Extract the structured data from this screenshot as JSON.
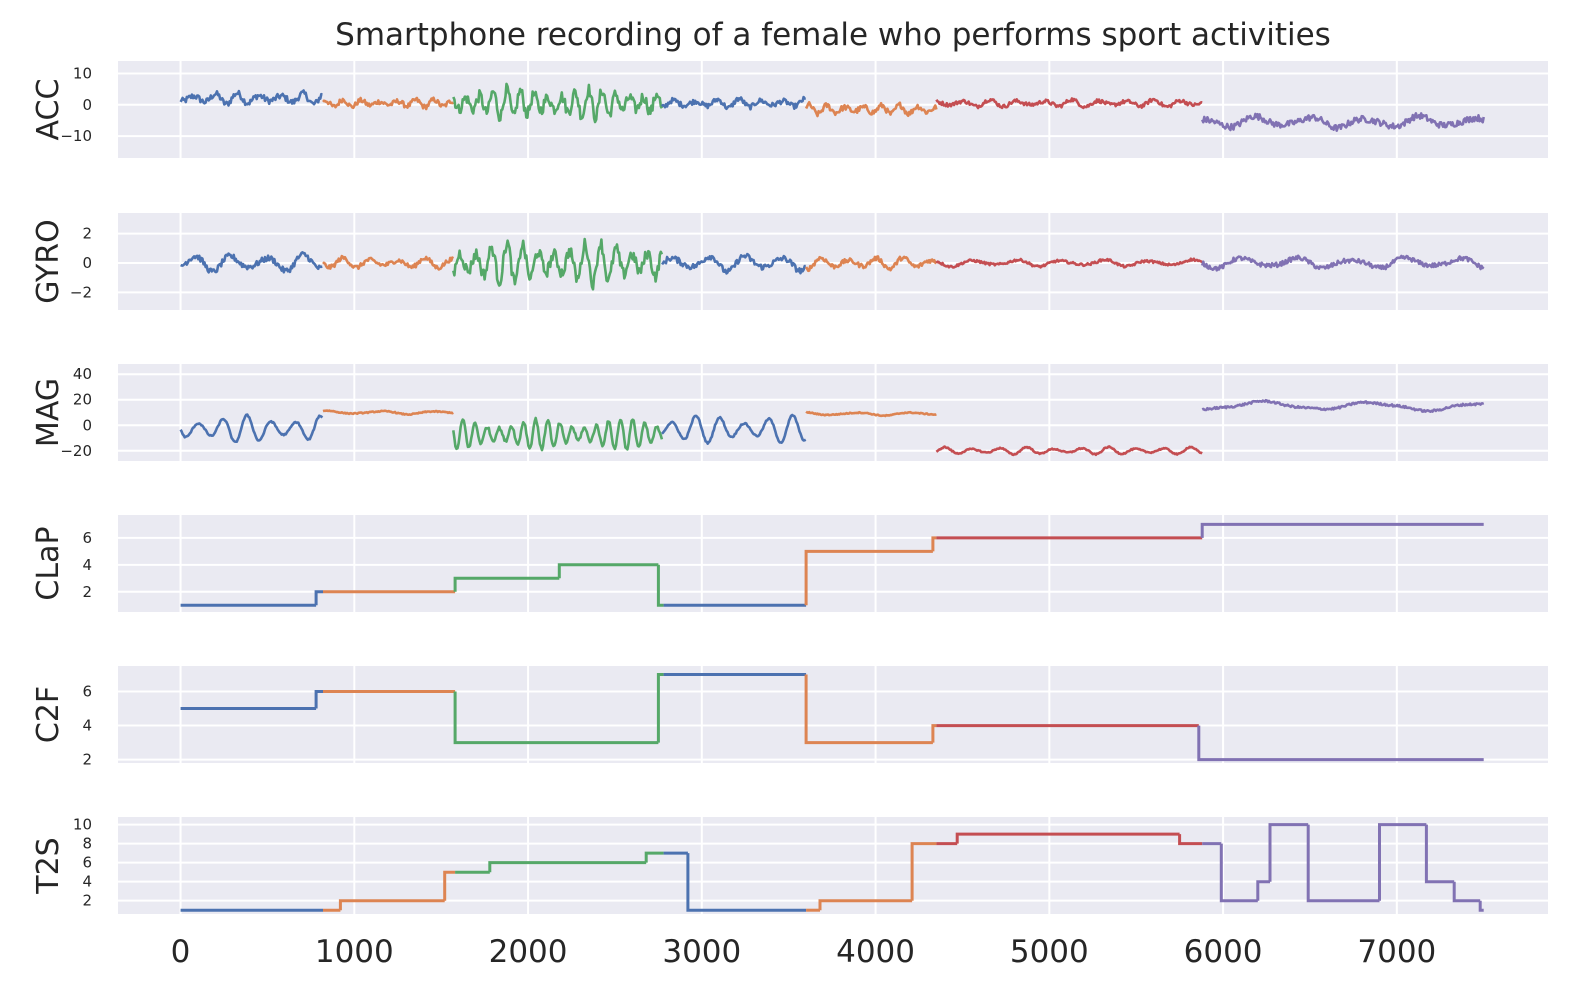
{
  "chart_data": {
    "type": "line",
    "title": "Smartphone recording of a female who performs sport activities",
    "x_ticks": [
      0,
      1000,
      2000,
      3000,
      4000,
      5000,
      6000,
      7000
    ],
    "xlim": [
      -360,
      7870
    ],
    "segment_colors": [
      "#4C72B0",
      "#DD8452",
      "#55A868",
      "#4C72B0",
      "#DD8452",
      "#C44E52",
      "#8172B3"
    ],
    "panels": [
      {
        "name": "acc",
        "ylabel": "ACC",
        "ylim": [
          -17,
          14
        ],
        "yticks": [
          10,
          0,
          -10
        ],
        "ytick_labels": [
          "10",
          "0",
          "−10"
        ],
        "kind": "signal",
        "segments": [
          {
            "start": 0,
            "end": 820,
            "base": 2,
            "amp": 1.8,
            "freq": 0.05,
            "noise": 1.0
          },
          {
            "start": 820,
            "end": 1570,
            "base": 0.5,
            "amp": 1.2,
            "freq": 0.06,
            "noise": 0.8
          },
          {
            "start": 1570,
            "end": 2770,
            "base": 0.5,
            "amp": 4.5,
            "freq": 0.08,
            "noise": 1.8
          },
          {
            "start": 2770,
            "end": 3600,
            "base": 0.5,
            "amp": 1.5,
            "freq": 0.05,
            "noise": 0.8
          },
          {
            "start": 3600,
            "end": 4350,
            "base": -1.5,
            "amp": 1.5,
            "freq": 0.06,
            "noise": 0.9
          },
          {
            "start": 4350,
            "end": 5880,
            "base": 0.5,
            "amp": 1.2,
            "freq": 0.04,
            "noise": 0.6
          },
          {
            "start": 5880,
            "end": 7500,
            "base": -5.5,
            "amp": 2.0,
            "freq": 0.02,
            "noise": 1.0
          }
        ]
      },
      {
        "name": "gyro",
        "ylabel": "GYRO",
        "ylim": [
          -3.2,
          3.4
        ],
        "yticks": [
          2,
          0,
          -2
        ],
        "ytick_labels": [
          "2",
          "0",
          "−2"
        ],
        "kind": "signal",
        "segments": [
          {
            "start": 0,
            "end": 820,
            "base": 0,
            "amp": 0.6,
            "freq": 0.03,
            "noise": 0.2
          },
          {
            "start": 820,
            "end": 1570,
            "base": 0,
            "amp": 0.35,
            "freq": 0.04,
            "noise": 0.15
          },
          {
            "start": 1570,
            "end": 2770,
            "base": 0,
            "amp": 1.4,
            "freq": 0.07,
            "noise": 0.4
          },
          {
            "start": 2770,
            "end": 3600,
            "base": 0,
            "amp": 0.6,
            "freq": 0.03,
            "noise": 0.2
          },
          {
            "start": 3600,
            "end": 4350,
            "base": 0,
            "amp": 0.4,
            "freq": 0.04,
            "noise": 0.15
          },
          {
            "start": 4350,
            "end": 5880,
            "base": 0,
            "amp": 0.25,
            "freq": 0.025,
            "noise": 0.08
          },
          {
            "start": 5880,
            "end": 7500,
            "base": 0,
            "amp": 0.4,
            "freq": 0.02,
            "noise": 0.15
          }
        ]
      },
      {
        "name": "mag",
        "ylabel": "MAG",
        "ylim": [
          -28,
          48
        ],
        "yticks": [
          40,
          20,
          0,
          -20
        ],
        "ytick_labels": [
          "40",
          "20",
          "0",
          "−20"
        ],
        "kind": "signal",
        "segments": [
          {
            "start": 0,
            "end": 820,
            "base": -3,
            "amp": 11,
            "freq": 0.045,
            "noise": 0.6
          },
          {
            "start": 820,
            "end": 1570,
            "base": 10,
            "amp": 1.5,
            "freq": 0.02,
            "noise": 0.4
          },
          {
            "start": 1570,
            "end": 2770,
            "base": -7,
            "amp": 12,
            "freq": 0.09,
            "noise": 1.2
          },
          {
            "start": 2770,
            "end": 3600,
            "base": -3,
            "amp": 11,
            "freq": 0.045,
            "noise": 0.6
          },
          {
            "start": 3600,
            "end": 4350,
            "base": 9,
            "amp": 1.5,
            "freq": 0.02,
            "noise": 0.4
          },
          {
            "start": 4350,
            "end": 5880,
            "base": -20,
            "amp": 3,
            "freq": 0.04,
            "noise": 0.5
          },
          {
            "start": 5880,
            "end": 7500,
            "base": 15,
            "amp": 4,
            "freq": 0.01,
            "noise": 0.8
          }
        ]
      },
      {
        "name": "clap",
        "ylabel": "CLaP",
        "ylim": [
          0.5,
          7.7
        ],
        "yticks": [
          6,
          4,
          2
        ],
        "ytick_labels": [
          "6",
          "4",
          "2"
        ],
        "kind": "step",
        "steps": [
          {
            "start": 0,
            "end": 780,
            "value": 1,
            "color": 0
          },
          {
            "start": 780,
            "end": 820,
            "value": 2,
            "color": 0
          },
          {
            "start": 820,
            "end": 1580,
            "value": 2,
            "color": 1
          },
          {
            "start": 1580,
            "end": 2180,
            "value": 3,
            "color": 2
          },
          {
            "start": 2180,
            "end": 2750,
            "value": 4,
            "color": 2
          },
          {
            "start": 2750,
            "end": 2780,
            "value": 1,
            "color": 2
          },
          {
            "start": 2780,
            "end": 3600,
            "value": 1,
            "color": 3
          },
          {
            "start": 3600,
            "end": 4330,
            "value": 5,
            "color": 4
          },
          {
            "start": 4330,
            "end": 4350,
            "value": 6,
            "color": 4
          },
          {
            "start": 4350,
            "end": 5880,
            "value": 6,
            "color": 5
          },
          {
            "start": 5880,
            "end": 7500,
            "value": 7,
            "color": 6
          }
        ]
      },
      {
        "name": "c2f",
        "ylabel": "C2F",
        "ylim": [
          1.8,
          7.5
        ],
        "yticks": [
          6,
          4,
          2
        ],
        "ytick_labels": [
          "6",
          "4",
          "2"
        ],
        "kind": "step",
        "steps": [
          {
            "start": 0,
            "end": 780,
            "value": 5,
            "color": 0
          },
          {
            "start": 780,
            "end": 820,
            "value": 6,
            "color": 0
          },
          {
            "start": 820,
            "end": 1580,
            "value": 6,
            "color": 1
          },
          {
            "start": 1580,
            "end": 2750,
            "value": 3,
            "color": 2
          },
          {
            "start": 2750,
            "end": 2780,
            "value": 7,
            "color": 2
          },
          {
            "start": 2780,
            "end": 3600,
            "value": 7,
            "color": 3
          },
          {
            "start": 3600,
            "end": 4330,
            "value": 3,
            "color": 4
          },
          {
            "start": 4330,
            "end": 4350,
            "value": 4,
            "color": 4
          },
          {
            "start": 4350,
            "end": 5860,
            "value": 4,
            "color": 5
          },
          {
            "start": 5860,
            "end": 7500,
            "value": 2,
            "color": 6
          }
        ]
      },
      {
        "name": "t2s",
        "ylabel": "T2S",
        "ylim": [
          0.6,
          10.8
        ],
        "yticks": [
          10,
          8,
          6,
          4,
          2
        ],
        "ytick_labels": [
          "10",
          "8",
          "6",
          "4",
          "2"
        ],
        "kind": "step",
        "steps": [
          {
            "start": 0,
            "end": 820,
            "value": 1,
            "color": 0
          },
          {
            "start": 820,
            "end": 920,
            "value": 1,
            "color": 1
          },
          {
            "start": 920,
            "end": 1520,
            "value": 2,
            "color": 1
          },
          {
            "start": 1520,
            "end": 1580,
            "value": 5,
            "color": 1
          },
          {
            "start": 1580,
            "end": 1780,
            "value": 5,
            "color": 2
          },
          {
            "start": 1780,
            "end": 2680,
            "value": 6,
            "color": 2
          },
          {
            "start": 2680,
            "end": 2780,
            "value": 7,
            "color": 2
          },
          {
            "start": 2780,
            "end": 2920,
            "value": 7,
            "color": 3
          },
          {
            "start": 2920,
            "end": 3600,
            "value": 1,
            "color": 3
          },
          {
            "start": 3600,
            "end": 3680,
            "value": 1,
            "color": 4
          },
          {
            "start": 3680,
            "end": 4210,
            "value": 2,
            "color": 4
          },
          {
            "start": 4210,
            "end": 4350,
            "value": 8,
            "color": 4
          },
          {
            "start": 4350,
            "end": 4470,
            "value": 8,
            "color": 5
          },
          {
            "start": 4470,
            "end": 5750,
            "value": 9,
            "color": 5
          },
          {
            "start": 5750,
            "end": 5880,
            "value": 8,
            "color": 5
          },
          {
            "start": 5880,
            "end": 5990,
            "value": 8,
            "color": 6
          },
          {
            "start": 5990,
            "end": 6200,
            "value": 2,
            "color": 6
          },
          {
            "start": 6200,
            "end": 6270,
            "value": 4,
            "color": 6
          },
          {
            "start": 6270,
            "end": 6490,
            "value": 10,
            "color": 6
          },
          {
            "start": 6490,
            "end": 6900,
            "value": 2,
            "color": 6
          },
          {
            "start": 6900,
            "end": 7170,
            "value": 10,
            "color": 6
          },
          {
            "start": 7170,
            "end": 7330,
            "value": 4,
            "color": 6
          },
          {
            "start": 7330,
            "end": 7480,
            "value": 2,
            "color": 6
          },
          {
            "start": 7480,
            "end": 7500,
            "value": 1,
            "color": 6
          }
        ]
      }
    ]
  }
}
